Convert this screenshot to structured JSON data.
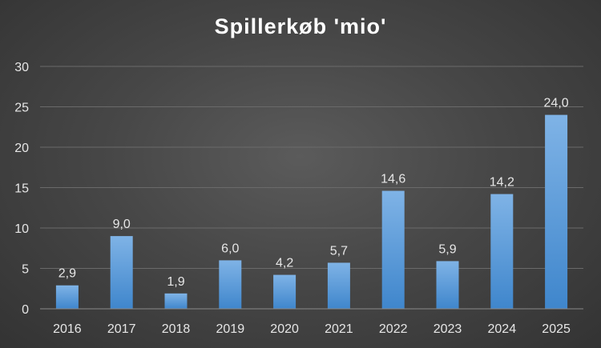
{
  "chart_data": {
    "type": "bar",
    "title": "Spillerkøb 'mio'",
    "categories": [
      "2016",
      "2017",
      "2018",
      "2019",
      "2020",
      "2021",
      "2022",
      "2023",
      "2024",
      "2025"
    ],
    "values": [
      2.9,
      9.0,
      1.9,
      6.0,
      4.2,
      5.7,
      14.6,
      5.9,
      14.2,
      24.0
    ],
    "data_labels": [
      "2,9",
      "9,0",
      "1,9",
      "6,0",
      "4,2",
      "5,7",
      "14,6",
      "5,9",
      "14,2",
      "24,0"
    ],
    "y_ticks": [
      "0",
      "5",
      "10",
      "15",
      "20",
      "25",
      "30"
    ],
    "ylim": [
      0,
      30
    ],
    "xlabel": "",
    "ylabel": "",
    "grid": true,
    "legend": "none",
    "colors": {
      "bar_top": "#7fb3e6",
      "bar_bottom": "#3f86cc",
      "text": "#e6e6e6",
      "title": "#ffffff"
    }
  }
}
